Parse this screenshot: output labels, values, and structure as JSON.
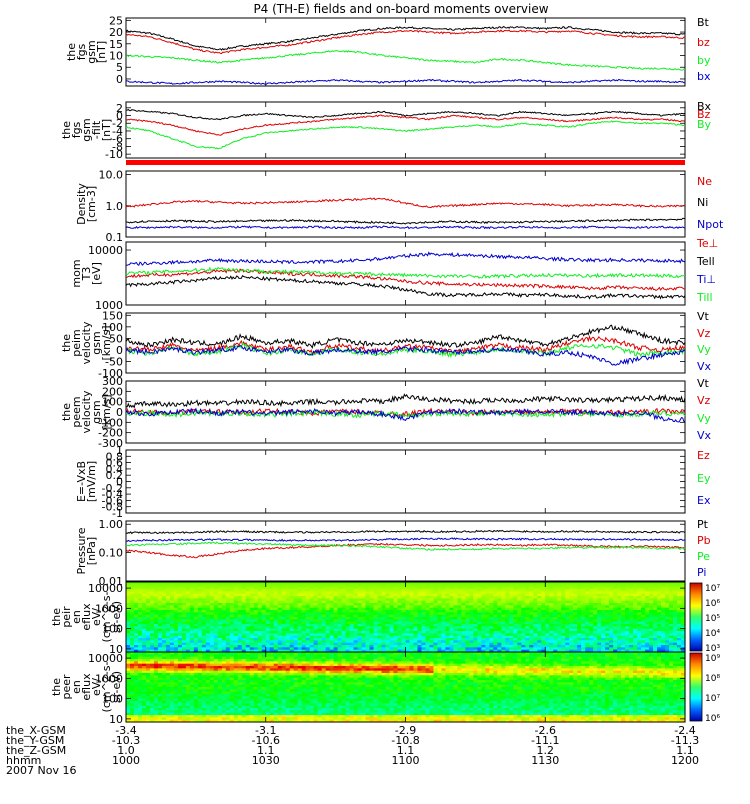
{
  "title": "P4 (TH-E) fields and on-board moments overview",
  "colors": {
    "black": "#000000",
    "red": "#dd0000",
    "green": "#11ee22",
    "blue": "#0000cc",
    "orange_bar": "#ff0000"
  },
  "chart_data": [
    {
      "id": "p1",
      "type": "line",
      "ylabel": [
        "the",
        "fgs",
        "gsm",
        "[nT]"
      ],
      "ylim": [
        -3,
        26
      ],
      "yticks": [
        25,
        20,
        15,
        10,
        5,
        0
      ],
      "series": [
        {
          "name": "Bt",
          "color": "black",
          "values": [
            20.5,
            19.5,
            17,
            14,
            12.5,
            14,
            15,
            16,
            17.5,
            19,
            20.5,
            21.5,
            22,
            21.5,
            21,
            21.5,
            22,
            22,
            21.5,
            22,
            21,
            20,
            19.5,
            19.5,
            19
          ]
        },
        {
          "name": "bz",
          "color": "red",
          "values": [
            19,
            18,
            15.5,
            12.5,
            11,
            12.5,
            13.5,
            14.5,
            16,
            17.5,
            19,
            20,
            20.5,
            20,
            19.5,
            20,
            20.5,
            20.5,
            20,
            20.5,
            19.5,
            18.5,
            18,
            18,
            17.5
          ]
        },
        {
          "name": "by",
          "color": "green",
          "values": [
            10,
            9.5,
            9,
            8,
            7,
            8,
            9,
            10,
            11,
            12,
            11.5,
            10,
            9,
            8,
            7.5,
            7,
            8.5,
            8,
            7,
            6,
            5.5,
            5,
            4.5,
            4.5,
            4
          ]
        },
        {
          "name": "bx",
          "color": "blue",
          "values": [
            -1,
            -1.5,
            -2,
            -1.5,
            -1,
            -1.5,
            -2,
            -1.5,
            -1,
            -0.5,
            -1,
            -1.5,
            -1,
            -0.5,
            -1,
            -1.5,
            -1,
            -0.5,
            -1,
            -1.5,
            -1,
            -0.5,
            -1,
            -1,
            -1.5
          ]
        }
      ]
    },
    {
      "id": "p2",
      "type": "line",
      "ylabel": [
        "the",
        "fgs",
        "gsm",
        "-filt",
        "[nT]"
      ],
      "ylim": [
        -11,
        3.5
      ],
      "yticks": [
        2,
        0,
        -2,
        -4,
        -6,
        -8,
        -10
      ],
      "series": [
        {
          "name": "Bx",
          "color": "black",
          "values": [
            1.5,
            1,
            0.5,
            -0.5,
            -1,
            0,
            0.5,
            0,
            -0.5,
            0,
            0.5,
            1,
            0,
            0.5,
            1,
            0.5,
            0,
            1,
            0.5,
            0,
            0.5,
            1,
            0.5,
            0,
            0.5
          ]
        },
        {
          "name": "Bz",
          "color": "red",
          "values": [
            -1,
            -1.5,
            -2.5,
            -4,
            -5,
            -3.5,
            -2.5,
            -2,
            -1.5,
            -1,
            -0.5,
            0,
            -0.5,
            -1,
            0,
            -0.5,
            -1,
            -0.5,
            -1,
            -1.5,
            -1,
            -0.5,
            -1,
            -1,
            -1.5
          ]
        },
        {
          "name": "By",
          "color": "green",
          "values": [
            -3,
            -4,
            -6,
            -8,
            -8.5,
            -6,
            -4.5,
            -4,
            -3.5,
            -3,
            -3,
            -3.5,
            -4,
            -3.5,
            -3,
            -2.5,
            -3,
            -2,
            -2.5,
            -3,
            -2,
            -1.5,
            -2,
            -2,
            -2.5
          ]
        }
      ]
    },
    {
      "id": "p3",
      "type": "line",
      "scale": "log",
      "ylabel": [
        "Density",
        "[cm-3]"
      ],
      "ylim": [
        0.1,
        13
      ],
      "ytick_labels": [
        "10.0",
        "1.0",
        "0.1"
      ],
      "ytick_values": [
        10,
        1,
        0.1
      ],
      "series": [
        {
          "name": "Ne",
          "color": "red",
          "values": [
            0.9,
            1.1,
            1.3,
            1.4,
            1.3,
            1.2,
            1.25,
            1.3,
            1.4,
            1.5,
            1.6,
            1.7,
            1.2,
            0.9,
            1.0,
            1.1,
            1.2,
            1.15,
            1.1,
            1.0,
            1.05,
            1.1,
            1.0,
            0.95,
            1.0
          ]
        },
        {
          "name": "Ni",
          "color": "black",
          "values": [
            0.3,
            0.32,
            0.33,
            0.32,
            0.31,
            0.32,
            0.33,
            0.34,
            0.33,
            0.32,
            0.3,
            0.29,
            0.28,
            0.3,
            0.31,
            0.3,
            0.29,
            0.3,
            0.31,
            0.32,
            0.33,
            0.34,
            0.35,
            0.36,
            0.37
          ]
        },
        {
          "name": "Npot",
          "color": "blue",
          "values": [
            0.2,
            0.2,
            0.21,
            0.2,
            0.2,
            0.21,
            0.2,
            0.2,
            0.21,
            0.2,
            0.2,
            0.21,
            0.2,
            0.2,
            0.21,
            0.2,
            0.2,
            0.21,
            0.2,
            0.2,
            0.21,
            0.2,
            0.2,
            0.21,
            0.2
          ]
        }
      ]
    },
    {
      "id": "p4",
      "type": "line",
      "scale": "log",
      "ylabel": [
        "mom",
        "T3",
        "[eV]"
      ],
      "ylim": [
        1000,
        14000
      ],
      "ytick_labels": [
        "10000",
        "1000"
      ],
      "ytick_values": [
        10000,
        1000
      ],
      "series": [
        {
          "name": "Te⊥",
          "color": "red",
          "values": [
            3300,
            3500,
            3600,
            3800,
            4100,
            4200,
            3900,
            3700,
            3600,
            3400,
            3300,
            3000,
            2700,
            2500,
            2400,
            2350,
            2300,
            2250,
            2200,
            2100,
            2000,
            2100,
            2000,
            1950,
            2000
          ]
        },
        {
          "name": "Tell",
          "color": "black",
          "values": [
            2300,
            2400,
            2600,
            2800,
            3100,
            3200,
            3000,
            2800,
            2700,
            2500,
            2400,
            2200,
            1900,
            1600,
            1500,
            1550,
            1600,
            1500,
            1550,
            1450,
            1400,
            1500,
            1450,
            1400,
            1450
          ]
        },
        {
          "name": "Ti⊥",
          "color": "blue",
          "values": [
            5500,
            5700,
            6000,
            6200,
            6500,
            6300,
            6200,
            6000,
            6100,
            6200,
            6500,
            7000,
            7800,
            8500,
            8200,
            8000,
            7600,
            7400,
            7000,
            6700,
            6500,
            6600,
            6500,
            6400,
            6300
          ]
        },
        {
          "name": "Till",
          "color": "green",
          "values": [
            3800,
            3900,
            4100,
            4300,
            4600,
            4300,
            4100,
            4000,
            3900,
            3800,
            3700,
            3600,
            3500,
            3400,
            3350,
            3300,
            3350,
            3400,
            3500,
            3450,
            3400,
            3500,
            3450,
            3400,
            3350
          ]
        }
      ]
    },
    {
      "id": "p5",
      "type": "line",
      "ylabel": [
        "the",
        "peim",
        "velocity",
        "gsm",
        "[km/s]"
      ],
      "ylim": [
        -100,
        160
      ],
      "yticks": [
        150,
        100,
        50,
        0,
        -50,
        -100
      ],
      "series": [
        {
          "name": "Vt",
          "color": "black",
          "values": [
            40,
            20,
            45,
            30,
            25,
            60,
            30,
            40,
            20,
            45,
            30,
            25,
            40,
            35,
            20,
            30,
            60,
            40,
            25,
            50,
            80,
            100,
            70,
            40,
            30
          ]
        },
        {
          "name": "Vz",
          "color": "red",
          "values": [
            10,
            0,
            20,
            -5,
            10,
            30,
            0,
            15,
            -10,
            20,
            5,
            -5,
            15,
            10,
            -10,
            5,
            20,
            10,
            0,
            30,
            50,
            40,
            10,
            0,
            10
          ]
        },
        {
          "name": "Vy",
          "color": "green",
          "values": [
            -5,
            -15,
            10,
            -20,
            -5,
            20,
            -15,
            0,
            -20,
            5,
            -10,
            -20,
            0,
            -5,
            -20,
            -10,
            5,
            -5,
            -15,
            10,
            20,
            10,
            -20,
            -10,
            -5
          ]
        },
        {
          "name": "Vx",
          "color": "blue",
          "values": [
            0,
            -10,
            5,
            -10,
            0,
            10,
            -5,
            0,
            -15,
            0,
            -5,
            -10,
            5,
            0,
            -10,
            -5,
            0,
            -5,
            -20,
            -10,
            -30,
            -60,
            -40,
            -20,
            -10
          ]
        }
      ]
    },
    {
      "id": "p6",
      "type": "line",
      "ylabel": [
        "the",
        "peem",
        "velocity",
        "gsm",
        "[km/s]"
      ],
      "ylim": [
        -300,
        300
      ],
      "yticks": [
        300,
        200,
        100,
        0,
        -100,
        -200,
        -300
      ],
      "series": [
        {
          "name": "Vt",
          "color": "black",
          "values": [
            60,
            80,
            70,
            90,
            80,
            100,
            90,
            80,
            100,
            90,
            110,
            100,
            150,
            120,
            110,
            100,
            120,
            110,
            130,
            120,
            110,
            120,
            130,
            140,
            120
          ]
        },
        {
          "name": "Vz",
          "color": "red",
          "values": [
            10,
            0,
            -10,
            10,
            0,
            -5,
            10,
            0,
            -10,
            5,
            0,
            -10,
            -20,
            10,
            0,
            -10,
            5,
            0,
            -5,
            10,
            0,
            -5,
            0,
            10,
            0
          ]
        },
        {
          "name": "Vy",
          "color": "green",
          "values": [
            -20,
            -10,
            -30,
            -10,
            -20,
            -10,
            -30,
            -20,
            -10,
            -20,
            -30,
            -10,
            -40,
            -20,
            -10,
            -20,
            -10,
            -20,
            -30,
            -10,
            -20,
            -30,
            -20,
            -10,
            -20
          ]
        },
        {
          "name": "Vx",
          "color": "blue",
          "values": [
            0,
            -20,
            0,
            10,
            -10,
            0,
            -20,
            0,
            10,
            -10,
            0,
            -20,
            -60,
            0,
            10,
            0,
            -10,
            0,
            10,
            -10,
            0,
            -20,
            0,
            -60,
            -80
          ]
        }
      ]
    },
    {
      "id": "p7",
      "type": "line",
      "ylabel": [
        "E=-VxB",
        "[mV/m]"
      ],
      "ylim": [
        -1.0,
        1.0
      ],
      "yticks": [
        1.0,
        0.8,
        0.6,
        0.4,
        0.2,
        0.0,
        -0.2,
        -0.4,
        -0.6,
        -0.8,
        -1.0
      ],
      "series": [
        {
          "name": "Ez",
          "color": "red",
          "values": []
        },
        {
          "name": "Ey",
          "color": "green",
          "values": []
        },
        {
          "name": "Ex",
          "color": "blue",
          "values": []
        }
      ]
    },
    {
      "id": "p8",
      "type": "line",
      "scale": "log",
      "ylabel": [
        "Pressure",
        "[nPa]"
      ],
      "ylim": [
        0.01,
        1.3
      ],
      "ytick_labels": [
        "1.00",
        "0.10",
        "0.01"
      ],
      "ytick_values": [
        1,
        0.1,
        0.01
      ],
      "series": [
        {
          "name": "Pt",
          "color": "black",
          "values": [
            0.5,
            0.5,
            0.5,
            0.52,
            0.55,
            0.55,
            0.53,
            0.52,
            0.52,
            0.53,
            0.55,
            0.56,
            0.56,
            0.55,
            0.55,
            0.56,
            0.57,
            0.56,
            0.55,
            0.56,
            0.55,
            0.54,
            0.53,
            0.53,
            0.52
          ]
        },
        {
          "name": "Pb",
          "color": "red",
          "values": [
            0.12,
            0.1,
            0.08,
            0.07,
            0.09,
            0.12,
            0.14,
            0.15,
            0.16,
            0.18,
            0.19,
            0.2,
            0.19,
            0.18,
            0.18,
            0.19,
            0.19,
            0.18,
            0.19,
            0.18,
            0.17,
            0.16,
            0.17,
            0.16,
            0.15
          ]
        },
        {
          "name": "Pe",
          "color": "green",
          "values": [
            0.18,
            0.19,
            0.2,
            0.21,
            0.22,
            0.21,
            0.2,
            0.19,
            0.18,
            0.18,
            0.17,
            0.16,
            0.14,
            0.13,
            0.13,
            0.13,
            0.14,
            0.14,
            0.14,
            0.15,
            0.15,
            0.15,
            0.15,
            0.14,
            0.14
          ]
        },
        {
          "name": "Pi",
          "color": "blue",
          "values": [
            0.26,
            0.27,
            0.28,
            0.28,
            0.29,
            0.28,
            0.28,
            0.27,
            0.27,
            0.27,
            0.28,
            0.29,
            0.3,
            0.31,
            0.31,
            0.3,
            0.3,
            0.3,
            0.3,
            0.29,
            0.29,
            0.3,
            0.29,
            0.29,
            0.28
          ]
        }
      ]
    },
    {
      "id": "p9",
      "type": "heatmap",
      "scale": "log",
      "ylabel": [
        "the",
        "peir",
        "en",
        "eflux",
        "eV/",
        "(cm^2-s-",
        "sr-eV)"
      ],
      "ylim": [
        7,
        20000
      ],
      "ytick_labels": [
        "10000",
        "1000",
        "100",
        "10"
      ],
      "ytick_values": [
        10000,
        1000,
        100,
        10
      ],
      "colorbar": {
        "labels": [
          "10⁷",
          "10⁶",
          "10⁵",
          "10⁴",
          "10³"
        ],
        "exponents": [
          7,
          6,
          5,
          4,
          3
        ]
      }
    },
    {
      "id": "p10",
      "type": "heatmap",
      "scale": "log",
      "ylabel": [
        "the",
        "peer",
        "en",
        "eflux",
        "eV/",
        "(cm^2-s-",
        "sr-eV)"
      ],
      "ylim": [
        7,
        20000
      ],
      "ytick_labels": [
        "10000",
        "1000",
        "100",
        "10"
      ],
      "ytick_values": [
        10000,
        1000,
        100,
        10
      ],
      "colorbar": {
        "labels": [
          "10⁹",
          "10⁸",
          "10⁷",
          "10⁶"
        ],
        "exponents": [
          9,
          8,
          7,
          6
        ]
      }
    }
  ],
  "xaxis": {
    "row_labels": [
      "the_X-GSM",
      "the_Y-GSM",
      "the_Z-GSM",
      "hhmm",
      "2007 Nov 16"
    ],
    "ticks": [
      {
        "x": "-3.4",
        "y": "-10.3",
        "z": "1.0",
        "hhmm": "1000"
      },
      {
        "x": "-3.1",
        "y": "-10.6",
        "z": "1.1",
        "hhmm": "1030"
      },
      {
        "x": "-2.9",
        "y": "-10.8",
        "z": "1.1",
        "hhmm": "1100"
      },
      {
        "x": "-2.6",
        "y": "-11.1",
        "z": "1.2",
        "hhmm": "1130"
      },
      {
        "x": "-2.4",
        "y": "-11.3",
        "z": "1.1",
        "hhmm": "1200"
      }
    ]
  }
}
